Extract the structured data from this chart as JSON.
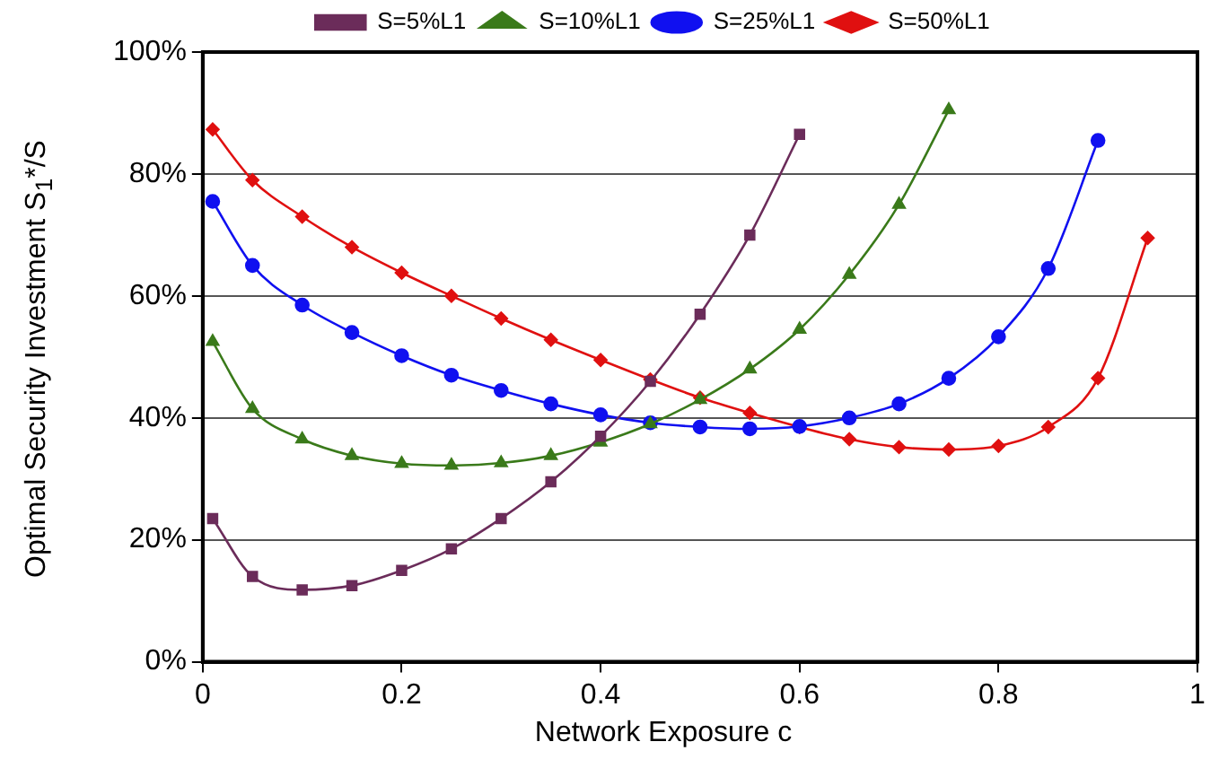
{
  "chart_data": {
    "type": "line",
    "xlabel": "Network Exposure c",
    "ylabel": "Optimal Security Investment S$_{1}$*/S",
    "xlim": [
      0,
      1
    ],
    "xticks": [
      0,
      0.2,
      0.4,
      0.6,
      0.8,
      1
    ],
    "ylim": [
      0,
      100
    ],
    "yticks": [
      {
        "value": 0,
        "label": "0%"
      },
      {
        "value": 20,
        "label": "20%"
      },
      {
        "value": 40,
        "label": "40%"
      },
      {
        "value": 60,
        "label": "60%"
      },
      {
        "value": 80,
        "label": "80%"
      },
      {
        "value": 100,
        "label": "100%"
      }
    ],
    "grid": "y",
    "legend": "top",
    "line_style": "solid",
    "series": [
      {
        "name": "S=5%L1",
        "color": "#6b2c5a",
        "marker": "square",
        "x": [
          0.01,
          0.05,
          0.1,
          0.15,
          0.2,
          0.25,
          0.3,
          0.35,
          0.4,
          0.45,
          0.5,
          0.55,
          0.6
        ],
        "values": [
          23.5,
          14,
          11.8,
          12.5,
          15,
          18.5,
          23.5,
          29.5,
          37,
          46,
          57,
          70,
          86.5
        ]
      },
      {
        "name": "S=10%L1",
        "color": "#3a7a1a",
        "marker": "triangle",
        "x": [
          0.01,
          0.05,
          0.1,
          0.15,
          0.2,
          0.25,
          0.3,
          0.35,
          0.4,
          0.45,
          0.5,
          0.55,
          0.6,
          0.65,
          0.7,
          0.75
        ],
        "values": [
          52.5,
          41.5,
          36.5,
          33.8,
          32.5,
          32.2,
          32.6,
          33.8,
          36,
          39,
          43,
          48,
          54.5,
          63.5,
          75,
          90.5
        ]
      },
      {
        "name": "S=25%L1",
        "color": "#1010f0",
        "marker": "circle",
        "x": [
          0.01,
          0.05,
          0.1,
          0.15,
          0.2,
          0.25,
          0.3,
          0.35,
          0.4,
          0.45,
          0.5,
          0.55,
          0.6,
          0.65,
          0.7,
          0.75,
          0.8,
          0.85,
          0.9
        ],
        "values": [
          75.5,
          65,
          58.5,
          54,
          50.2,
          47,
          44.5,
          42.3,
          40.5,
          39.2,
          38.5,
          38.2,
          38.6,
          40,
          42.3,
          46.5,
          53.3,
          64.5,
          85.5
        ]
      },
      {
        "name": "S=50%L1",
        "color": "#e01010",
        "marker": "diamond",
        "x": [
          0.01,
          0.05,
          0.1,
          0.15,
          0.2,
          0.25,
          0.3,
          0.35,
          0.4,
          0.45,
          0.5,
          0.55,
          0.6,
          0.65,
          0.7,
          0.75,
          0.8,
          0.85,
          0.9,
          0.95
        ],
        "values": [
          87.3,
          79,
          73,
          68,
          63.8,
          60,
          56.3,
          52.8,
          49.5,
          46.3,
          43.3,
          40.8,
          38.5,
          36.5,
          35.2,
          34.8,
          35.4,
          38.5,
          46.5,
          69.5
        ]
      }
    ]
  }
}
